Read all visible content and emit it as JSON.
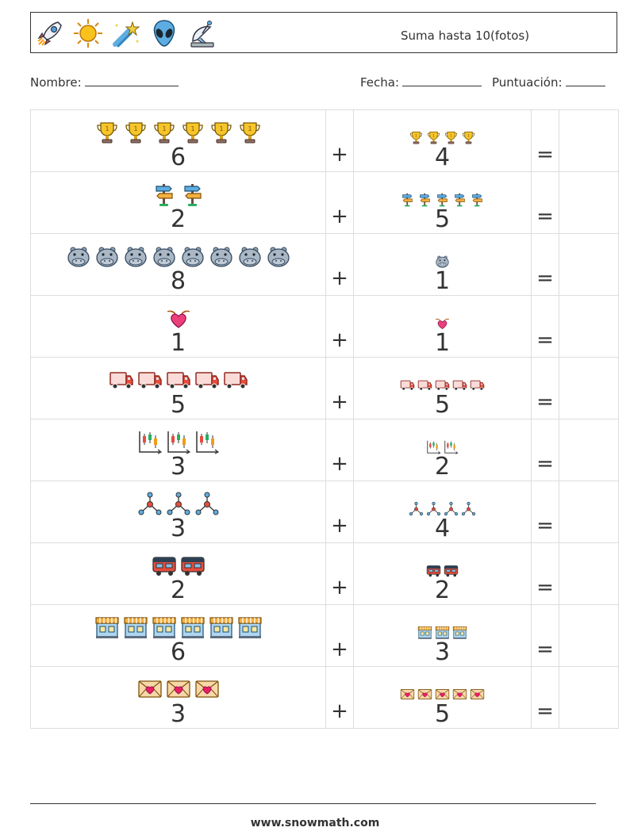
{
  "header": {
    "title": "Suma hasta 10(fotos)",
    "icons": [
      "rocket-icon",
      "sun-icon",
      "shooting-star-icon",
      "alien-icon",
      "satellite-dish-icon"
    ]
  },
  "fields": {
    "name_label": "Nombre:",
    "date_label": "Fecha:",
    "score_label": "Puntuación:"
  },
  "operators": {
    "plus": "+",
    "equals": "="
  },
  "problems": [
    {
      "icon": "trophy-icon",
      "a": 6,
      "b": 4
    },
    {
      "icon": "signpost-icon",
      "a": 2,
      "b": 5
    },
    {
      "icon": "hippo-icon",
      "a": 8,
      "b": 1
    },
    {
      "icon": "heart-hands-icon",
      "a": 1,
      "b": 1
    },
    {
      "icon": "truck-icon",
      "a": 5,
      "b": 5
    },
    {
      "icon": "chart-icon",
      "a": 3,
      "b": 2
    },
    {
      "icon": "network-icon",
      "a": 3,
      "b": 4
    },
    {
      "icon": "camper-van-icon",
      "a": 2,
      "b": 2
    },
    {
      "icon": "storefront-icon",
      "a": 6,
      "b": 3
    },
    {
      "icon": "love-letter-icon",
      "a": 3,
      "b": 5
    }
  ],
  "footer": {
    "url": "www.snowmath.com"
  }
}
